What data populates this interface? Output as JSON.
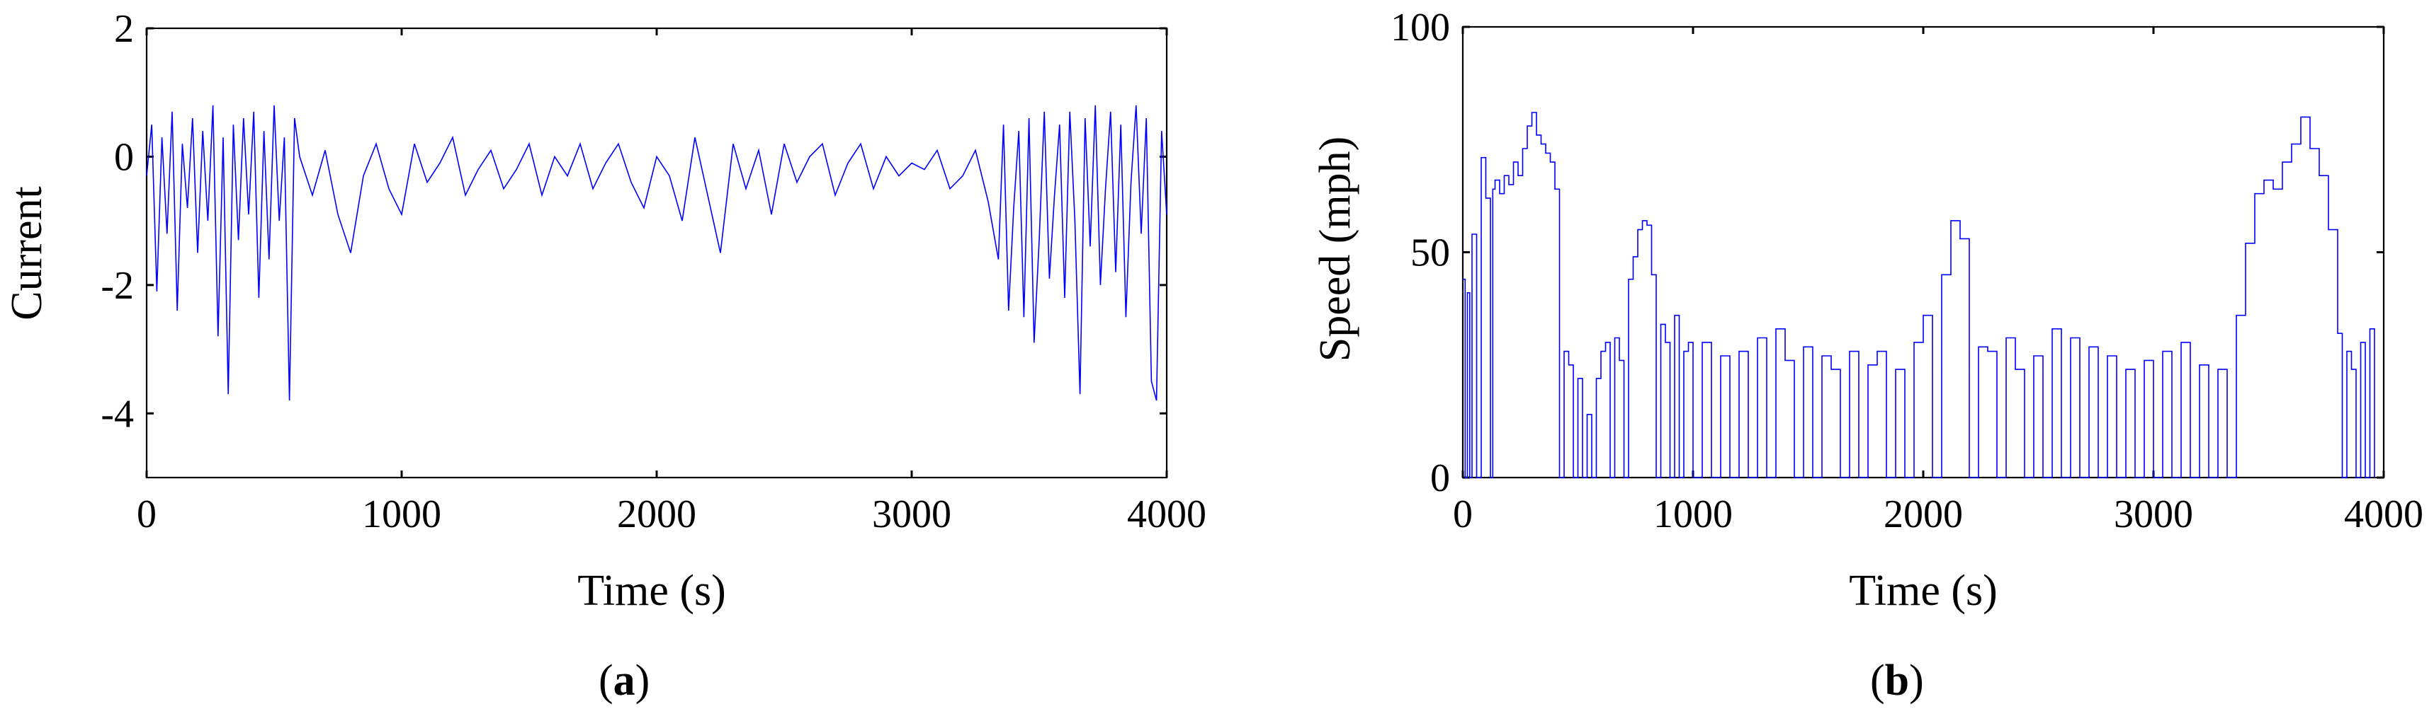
{
  "chart_data": [
    {
      "panel": "a",
      "type": "line",
      "xlabel": "Time (s)",
      "ylabel": "Current",
      "xlim": [
        0,
        4000
      ],
      "ylim": [
        -5,
        2
      ],
      "xticks": [
        0,
        1000,
        2000,
        3000,
        4000
      ],
      "yticks": [
        -4,
        -2,
        0,
        2
      ],
      "grid": false,
      "color": "#0000ff",
      "series": [
        {
          "x": [
            0,
            20,
            40,
            60,
            80,
            100,
            120,
            140,
            160,
            180,
            200,
            220,
            240,
            260,
            280,
            300,
            320,
            340,
            360,
            380,
            400,
            420,
            440,
            460,
            480,
            500,
            520,
            540,
            560,
            580,
            600,
            650,
            700,
            750,
            800,
            850,
            900,
            950,
            1000,
            1050,
            1100,
            1150,
            1200,
            1250,
            1300,
            1350,
            1400,
            1450,
            1500,
            1550,
            1600,
            1650,
            1700,
            1750,
            1800,
            1850,
            1900,
            1950,
            2000,
            2050,
            2100,
            2150,
            2200,
            2250,
            2300,
            2350,
            2400,
            2450,
            2500,
            2550,
            2600,
            2650,
            2700,
            2750,
            2800,
            2850,
            2900,
            2950,
            3000,
            3050,
            3100,
            3150,
            3200,
            3250,
            3300,
            3340,
            3360,
            3380,
            3400,
            3420,
            3440,
            3460,
            3480,
            3500,
            3520,
            3540,
            3560,
            3580,
            3600,
            3620,
            3640,
            3660,
            3680,
            3700,
            3720,
            3740,
            3760,
            3780,
            3800,
            3820,
            3840,
            3860,
            3880,
            3900,
            3920,
            3940,
            3960,
            3980,
            4000
          ],
          "y": [
            -0.3,
            0.5,
            -2.1,
            0.3,
            -1.2,
            0.7,
            -2.4,
            0.2,
            -0.8,
            0.6,
            -1.5,
            0.4,
            -1.0,
            0.8,
            -2.8,
            0.3,
            -3.7,
            0.5,
            -1.3,
            0.6,
            -0.9,
            0.7,
            -2.2,
            0.4,
            -1.6,
            0.8,
            -1.0,
            0.3,
            -3.8,
            0.6,
            0.0,
            -0.6,
            0.1,
            -0.9,
            -1.5,
            -0.3,
            0.2,
            -0.5,
            -0.9,
            0.2,
            -0.4,
            -0.1,
            0.3,
            -0.6,
            -0.2,
            0.1,
            -0.5,
            -0.2,
            0.2,
            -0.6,
            0.0,
            -0.3,
            0.2,
            -0.5,
            -0.1,
            0.2,
            -0.4,
            -0.8,
            0.0,
            -0.3,
            -1.0,
            0.3,
            -0.6,
            -1.5,
            0.2,
            -0.5,
            0.1,
            -0.9,
            0.2,
            -0.4,
            0.0,
            0.2,
            -0.6,
            -0.1,
            0.2,
            -0.5,
            0.0,
            -0.3,
            -0.1,
            -0.2,
            0.1,
            -0.5,
            -0.3,
            0.1,
            -0.7,
            -1.6,
            0.5,
            -2.4,
            -0.8,
            0.4,
            -2.5,
            0.6,
            -2.9,
            -1.3,
            0.7,
            -1.9,
            -0.6,
            0.5,
            -2.2,
            0.7,
            -1.0,
            -3.7,
            0.6,
            -1.4,
            0.8,
            -2.0,
            -0.5,
            0.7,
            -1.8,
            0.5,
            -2.5,
            -0.4,
            0.8,
            -1.2,
            0.6,
            -3.5,
            -3.8,
            0.4,
            -0.9
          ]
        }
      ]
    },
    {
      "panel": "b",
      "type": "line",
      "xlabel": "Time (s)",
      "ylabel": "Speed (mph)",
      "xlim": [
        0,
        4000
      ],
      "ylim": [
        0,
        100
      ],
      "xticks": [
        0,
        1000,
        2000,
        3000,
        4000
      ],
      "yticks": [
        0,
        50,
        100
      ],
      "grid": false,
      "color": "#0000ff",
      "series": [
        {
          "x": [
            0,
            10,
            20,
            30,
            40,
            60,
            80,
            100,
            120,
            130,
            140,
            160,
            180,
            200,
            220,
            240,
            260,
            280,
            300,
            320,
            340,
            360,
            380,
            400,
            420,
            440,
            460,
            480,
            500,
            520,
            540,
            560,
            580,
            600,
            620,
            640,
            660,
            680,
            700,
            720,
            740,
            760,
            780,
            800,
            820,
            840,
            860,
            880,
            900,
            920,
            940,
            960,
            980,
            1000,
            1040,
            1080,
            1120,
            1160,
            1200,
            1240,
            1280,
            1320,
            1360,
            1400,
            1440,
            1480,
            1520,
            1560,
            1600,
            1640,
            1680,
            1720,
            1760,
            1800,
            1840,
            1880,
            1920,
            1960,
            2000,
            2040,
            2080,
            2120,
            2160,
            2200,
            2240,
            2280,
            2320,
            2360,
            2400,
            2440,
            2480,
            2520,
            2560,
            2600,
            2640,
            2680,
            2720,
            2760,
            2800,
            2840,
            2880,
            2920,
            2960,
            3000,
            3040,
            3080,
            3120,
            3160,
            3200,
            3240,
            3280,
            3320,
            3360,
            3400,
            3440,
            3480,
            3520,
            3560,
            3600,
            3640,
            3680,
            3720,
            3760,
            3800,
            3820,
            3840,
            3860,
            3880,
            3900,
            3920,
            3940,
            3960
          ],
          "y": [
            44,
            0,
            41,
            0,
            54,
            0,
            71,
            62,
            0,
            64,
            66,
            63,
            67,
            65,
            70,
            67,
            73,
            78,
            81,
            76,
            74,
            72,
            70,
            64,
            0,
            28,
            25,
            0,
            22,
            0,
            14,
            0,
            22,
            28,
            30,
            0,
            31,
            26,
            0,
            44,
            49,
            55,
            57,
            56,
            45,
            0,
            34,
            30,
            0,
            36,
            0,
            28,
            30,
            0,
            30,
            0,
            27,
            0,
            28,
            0,
            31,
            0,
            33,
            26,
            0,
            29,
            0,
            27,
            24,
            0,
            28,
            0,
            25,
            28,
            0,
            24,
            0,
            30,
            36,
            0,
            45,
            57,
            53,
            0,
            29,
            28,
            0,
            31,
            24,
            0,
            27,
            0,
            33,
            0,
            31,
            0,
            29,
            0,
            27,
            0,
            24,
            0,
            26,
            0,
            28,
            0,
            30,
            0,
            25,
            0,
            24,
            0,
            36,
            52,
            63,
            66,
            64,
            70,
            74,
            80,
            73,
            67,
            55,
            32,
            0,
            28,
            24,
            0,
            30,
            0,
            33,
            0
          ]
        }
      ]
    }
  ],
  "captions": {
    "a": {
      "open": "(",
      "letter": "a",
      "close": ")"
    },
    "b": {
      "open": "(",
      "letter": "b",
      "close": ")"
    }
  }
}
